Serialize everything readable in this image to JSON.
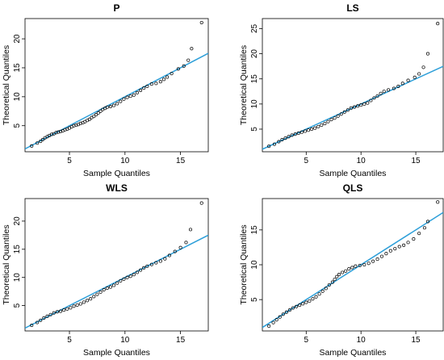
{
  "chart_data": [
    {
      "type": "scatter",
      "title": "P",
      "xlabel": "Sample Quantiles",
      "ylabel": "Theoretical Quantiles",
      "xlim": [
        1,
        17.5
      ],
      "ylim": [
        0.5,
        23.5
      ],
      "xticks": [
        "5",
        "10",
        "15"
      ],
      "yticks": [
        "5",
        "10",
        "15",
        "20"
      ],
      "grid": false,
      "points": [
        [
          1.6,
          1.5
        ],
        [
          2.1,
          2.0
        ],
        [
          2.4,
          2.3
        ],
        [
          2.6,
          2.6
        ],
        [
          2.8,
          2.9
        ],
        [
          3.0,
          3.1
        ],
        [
          3.2,
          3.3
        ],
        [
          3.4,
          3.5
        ],
        [
          3.6,
          3.6
        ],
        [
          3.8,
          3.8
        ],
        [
          4.0,
          3.9
        ],
        [
          4.2,
          4.0
        ],
        [
          4.4,
          4.1
        ],
        [
          4.6,
          4.3
        ],
        [
          4.8,
          4.4
        ],
        [
          5.0,
          4.6
        ],
        [
          5.2,
          4.8
        ],
        [
          5.4,
          5.0
        ],
        [
          5.6,
          5.1
        ],
        [
          5.8,
          5.2
        ],
        [
          6.0,
          5.4
        ],
        [
          6.2,
          5.5
        ],
        [
          6.4,
          5.7
        ],
        [
          6.6,
          5.9
        ],
        [
          6.8,
          6.1
        ],
        [
          7.0,
          6.4
        ],
        [
          7.2,
          6.6
        ],
        [
          7.4,
          6.9
        ],
        [
          7.6,
          7.2
        ],
        [
          7.8,
          7.5
        ],
        [
          8.0,
          7.8
        ],
        [
          8.2,
          8.0
        ],
        [
          8.4,
          8.2
        ],
        [
          8.7,
          8.3
        ],
        [
          9.0,
          8.5
        ],
        [
          9.3,
          8.8
        ],
        [
          9.6,
          9.2
        ],
        [
          9.9,
          9.6
        ],
        [
          10.2,
          9.9
        ],
        [
          10.5,
          10.1
        ],
        [
          10.8,
          10.3
        ],
        [
          11.1,
          10.7
        ],
        [
          11.4,
          11.1
        ],
        [
          11.7,
          11.5
        ],
        [
          12.0,
          11.8
        ],
        [
          12.4,
          12.2
        ],
        [
          12.8,
          12.3
        ],
        [
          13.2,
          12.6
        ],
        [
          13.5,
          13.0
        ],
        [
          13.8,
          13.4
        ],
        [
          14.2,
          14.0
        ],
        [
          14.8,
          14.8
        ],
        [
          15.3,
          15.3
        ],
        [
          15.7,
          16.3
        ],
        [
          16.0,
          18.3
        ],
        [
          16.9,
          22.8
        ]
      ],
      "reference_line": [
        [
          1,
          1.0
        ],
        [
          17.5,
          17.5
        ]
      ]
    },
    {
      "type": "scatter",
      "title": "LS",
      "xlabel": "Sample Quantiles",
      "ylabel": "Theoretical Quantiles",
      "xlim": [
        1,
        17.5
      ],
      "ylim": [
        0.5,
        27.0
      ],
      "xticks": [
        "5",
        "10",
        "15"
      ],
      "yticks": [
        "5",
        "10",
        "15",
        "20",
        "25"
      ],
      "grid": false,
      "points": [
        [
          1.6,
          1.6
        ],
        [
          2.1,
          2.0
        ],
        [
          2.5,
          2.5
        ],
        [
          2.8,
          2.9
        ],
        [
          3.1,
          3.2
        ],
        [
          3.4,
          3.5
        ],
        [
          3.7,
          3.8
        ],
        [
          4.0,
          4.0
        ],
        [
          4.3,
          4.2
        ],
        [
          4.6,
          4.4
        ],
        [
          4.9,
          4.6
        ],
        [
          5.2,
          4.8
        ],
        [
          5.5,
          5.0
        ],
        [
          5.8,
          5.2
        ],
        [
          6.1,
          5.5
        ],
        [
          6.4,
          5.8
        ],
        [
          6.7,
          6.1
        ],
        [
          7.0,
          6.5
        ],
        [
          7.3,
          6.9
        ],
        [
          7.6,
          7.2
        ],
        [
          7.9,
          7.6
        ],
        [
          8.2,
          8.0
        ],
        [
          8.5,
          8.4
        ],
        [
          8.8,
          8.8
        ],
        [
          9.1,
          9.2
        ],
        [
          9.4,
          9.4
        ],
        [
          9.7,
          9.6
        ],
        [
          10.0,
          9.8
        ],
        [
          10.3,
          10.0
        ],
        [
          10.6,
          10.2
        ],
        [
          10.9,
          10.7
        ],
        [
          11.2,
          11.2
        ],
        [
          11.5,
          11.6
        ],
        [
          11.8,
          12.1
        ],
        [
          12.1,
          12.5
        ],
        [
          12.5,
          12.8
        ],
        [
          13.0,
          13.1
        ],
        [
          13.4,
          13.5
        ],
        [
          13.8,
          14.1
        ],
        [
          14.3,
          14.7
        ],
        [
          14.9,
          15.3
        ],
        [
          15.3,
          16.0
        ],
        [
          15.7,
          17.3
        ],
        [
          16.1,
          20.0
        ],
        [
          17.0,
          26.0
        ]
      ],
      "reference_line": [
        [
          1,
          1.0
        ],
        [
          17.5,
          17.5
        ]
      ]
    },
    {
      "type": "scatter",
      "title": "WLS",
      "xlabel": "Sample Quantiles",
      "ylabel": "Theoretical Quantiles",
      "xlim": [
        1,
        17.5
      ],
      "ylim": [
        0.5,
        24.0
      ],
      "xticks": [
        "5",
        "10",
        "15"
      ],
      "yticks": [
        "5",
        "10",
        "15",
        "20"
      ],
      "grid": false,
      "points": [
        [
          1.6,
          1.5
        ],
        [
          2.1,
          2.0
        ],
        [
          2.4,
          2.4
        ],
        [
          2.7,
          2.8
        ],
        [
          3.0,
          3.1
        ],
        [
          3.3,
          3.4
        ],
        [
          3.6,
          3.7
        ],
        [
          3.9,
          3.9
        ],
        [
          4.2,
          4.0
        ],
        [
          4.5,
          4.2
        ],
        [
          4.8,
          4.4
        ],
        [
          5.1,
          4.6
        ],
        [
          5.4,
          4.9
        ],
        [
          5.7,
          5.1
        ],
        [
          6.0,
          5.3
        ],
        [
          6.3,
          5.6
        ],
        [
          6.6,
          5.9
        ],
        [
          6.9,
          6.2
        ],
        [
          7.2,
          6.6
        ],
        [
          7.5,
          7.0
        ],
        [
          7.8,
          7.4
        ],
        [
          8.1,
          7.8
        ],
        [
          8.4,
          8.1
        ],
        [
          8.7,
          8.3
        ],
        [
          9.0,
          8.6
        ],
        [
          9.3,
          9.0
        ],
        [
          9.6,
          9.4
        ],
        [
          9.9,
          9.7
        ],
        [
          10.2,
          10.0
        ],
        [
          10.5,
          10.2
        ],
        [
          10.8,
          10.5
        ],
        [
          11.1,
          10.9
        ],
        [
          11.4,
          11.3
        ],
        [
          11.7,
          11.7
        ],
        [
          12.0,
          12.0
        ],
        [
          12.4,
          12.3
        ],
        [
          12.8,
          12.6
        ],
        [
          13.2,
          12.9
        ],
        [
          13.6,
          13.3
        ],
        [
          14.0,
          13.9
        ],
        [
          14.5,
          14.6
        ],
        [
          15.0,
          15.3
        ],
        [
          15.5,
          16.2
        ],
        [
          15.9,
          18.5
        ],
        [
          16.9,
          23.2
        ]
      ],
      "reference_line": [
        [
          1,
          1.0
        ],
        [
          17.5,
          17.5
        ]
      ]
    },
    {
      "type": "scatter",
      "title": "QLS",
      "xlabel": "Sample Quantiles",
      "ylabel": "Theoretical Quantiles",
      "xlim": [
        1,
        17.5
      ],
      "ylim": [
        0.5,
        19.5
      ],
      "xticks": [
        "5",
        "10",
        "15"
      ],
      "yticks": [
        "5",
        "10",
        "15"
      ],
      "grid": false,
      "points": [
        [
          1.6,
          1.2
        ],
        [
          2.0,
          1.7
        ],
        [
          2.3,
          2.1
        ],
        [
          2.6,
          2.5
        ],
        [
          2.9,
          2.9
        ],
        [
          3.2,
          3.2
        ],
        [
          3.5,
          3.5
        ],
        [
          3.8,
          3.8
        ],
        [
          4.1,
          4.0
        ],
        [
          4.4,
          4.2
        ],
        [
          4.7,
          4.4
        ],
        [
          5.0,
          4.6
        ],
        [
          5.3,
          4.8
        ],
        [
          5.6,
          5.1
        ],
        [
          5.9,
          5.4
        ],
        [
          6.2,
          5.8
        ],
        [
          6.5,
          6.2
        ],
        [
          6.8,
          6.6
        ],
        [
          7.1,
          7.1
        ],
        [
          7.4,
          7.5
        ],
        [
          7.6,
          7.9
        ],
        [
          7.8,
          8.3
        ],
        [
          8.0,
          8.6
        ],
        [
          8.3,
          8.9
        ],
        [
          8.6,
          9.1
        ],
        [
          8.9,
          9.4
        ],
        [
          9.2,
          9.6
        ],
        [
          9.5,
          9.8
        ],
        [
          9.9,
          9.9
        ],
        [
          10.3,
          10.0
        ],
        [
          10.7,
          10.2
        ],
        [
          11.1,
          10.5
        ],
        [
          11.5,
          10.8
        ],
        [
          11.9,
          11.2
        ],
        [
          12.3,
          11.6
        ],
        [
          12.7,
          12.0
        ],
        [
          13.1,
          12.3
        ],
        [
          13.5,
          12.6
        ],
        [
          13.9,
          12.8
        ],
        [
          14.3,
          13.2
        ],
        [
          14.8,
          13.7
        ],
        [
          15.3,
          14.5
        ],
        [
          15.8,
          15.3
        ],
        [
          16.1,
          16.2
        ],
        [
          17.0,
          19.0
        ]
      ],
      "reference_line": [
        [
          1,
          1.0
        ],
        [
          17.5,
          17.5
        ]
      ]
    }
  ],
  "colors": {
    "reference_line": "#2d9fd9",
    "points": "#000000",
    "axes": "#000000"
  }
}
